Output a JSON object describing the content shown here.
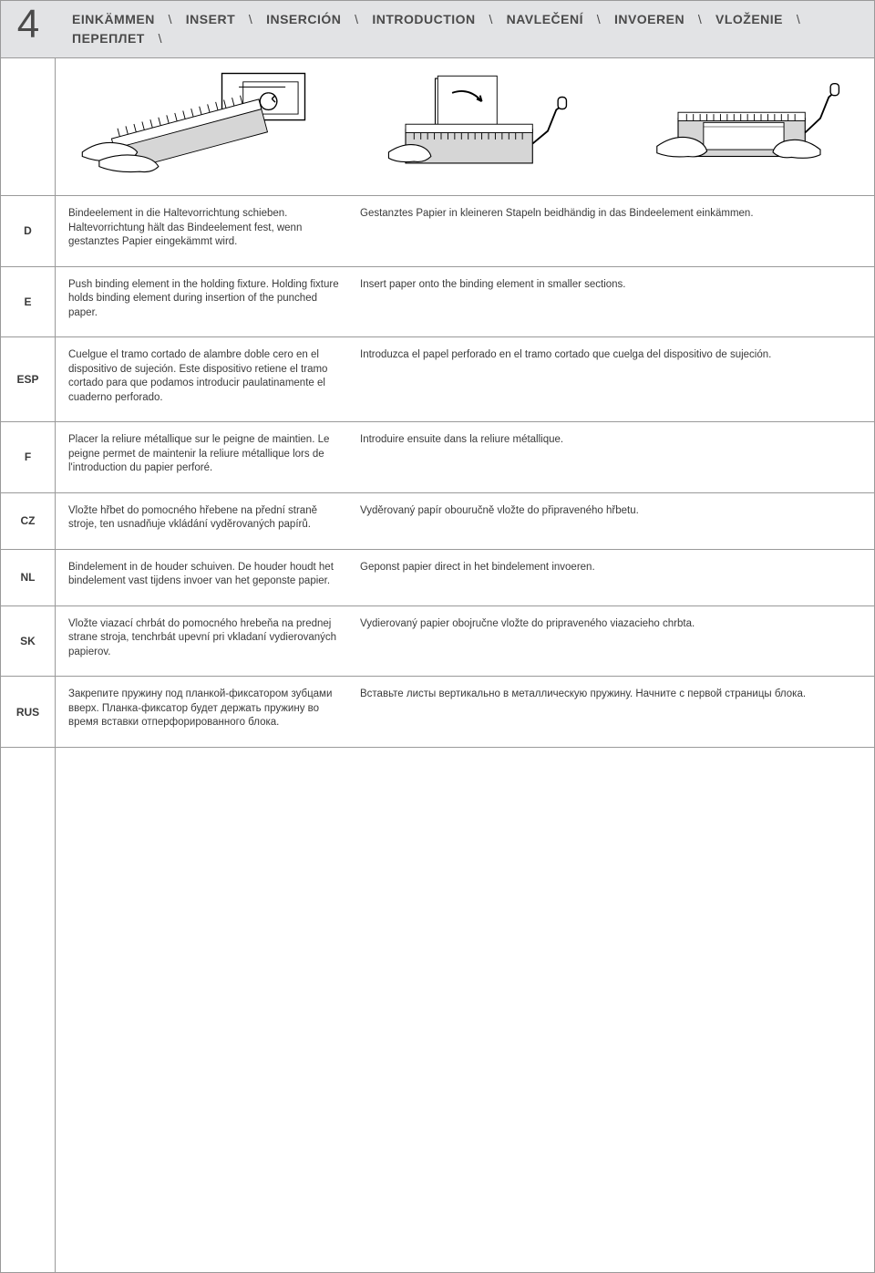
{
  "step_number": "4",
  "header_titles": [
    "EINKÄMMEN",
    "INSERT",
    "INSERCIÓN",
    "INTRODUCTION",
    "NAVLEČENÍ",
    "INVOEREN",
    "VLOŽENIE",
    "ПЕРЕПЛЕТ"
  ],
  "separator": "\\",
  "rows": [
    {
      "code": "D",
      "left": "Bindeelement in die Haltevorrichtung schieben. Haltevorrichtung hält das Bindeelement fest, wenn gestanztes Papier eingekämmt wird.",
      "right": "Gestanztes Papier in kleineren Stapeln beidhändig in das Bindeelement einkämmen."
    },
    {
      "code": "E",
      "left": "Push binding element in the holding fixture. Holding fixture holds binding element during insertion of the punched paper.",
      "right": "Insert paper onto the binding element in smaller sections."
    },
    {
      "code": "ESP",
      "left": "Cuelgue el tramo cortado de alambre doble cero en el dispositivo de sujeción. Este dispositivo retiene el tramo cortado para que podamos introducir paulatinamente el cuaderno perforado.",
      "right": "Introduzca el papel perforado en el tramo cortado que cuelga del dispositivo de sujeción."
    },
    {
      "code": "F",
      "left": "Placer la reliure métallique sur le peigne de maintien. Le peigne permet de maintenir la reliure métallique lors de l'introduction du papier perforé.",
      "right": "Introduire ensuite dans la reliure métallique."
    },
    {
      "code": "CZ",
      "left": "Vložte hřbet do pomocného hřebene na přední straně stroje, ten usnadňuje vkládání vyděrovaných papírů.",
      "right": "Vyděrovaný papír obouručně vložte do připraveného hřbetu."
    },
    {
      "code": "NL",
      "left": "Bindelement in de houder schuiven. De houder houdt het bindelement vast tijdens invoer van het geponste papier.",
      "right": "Geponst papier direct in het bindelement invoeren."
    },
    {
      "code": "SK",
      "left": "Vložte viazací chrbát do pomocného hrebeňa na prednej strane stroja, tenchrbát upevní pri vkladaní vydierovaných papierov.",
      "right": "Vydierovaný papier obojručne vložte do pripraveného viazacieho chrbta."
    },
    {
      "code": "RUS",
      "left": "Закрепите пружину под планкой-фиксатором зубцами вверх. Планка-фиксатор будет держать пружину во время вставки отперфорированного блока.",
      "right": "Вставьте листы вертикально в  металлическую пружину. Начните с первой страницы блока."
    }
  ]
}
